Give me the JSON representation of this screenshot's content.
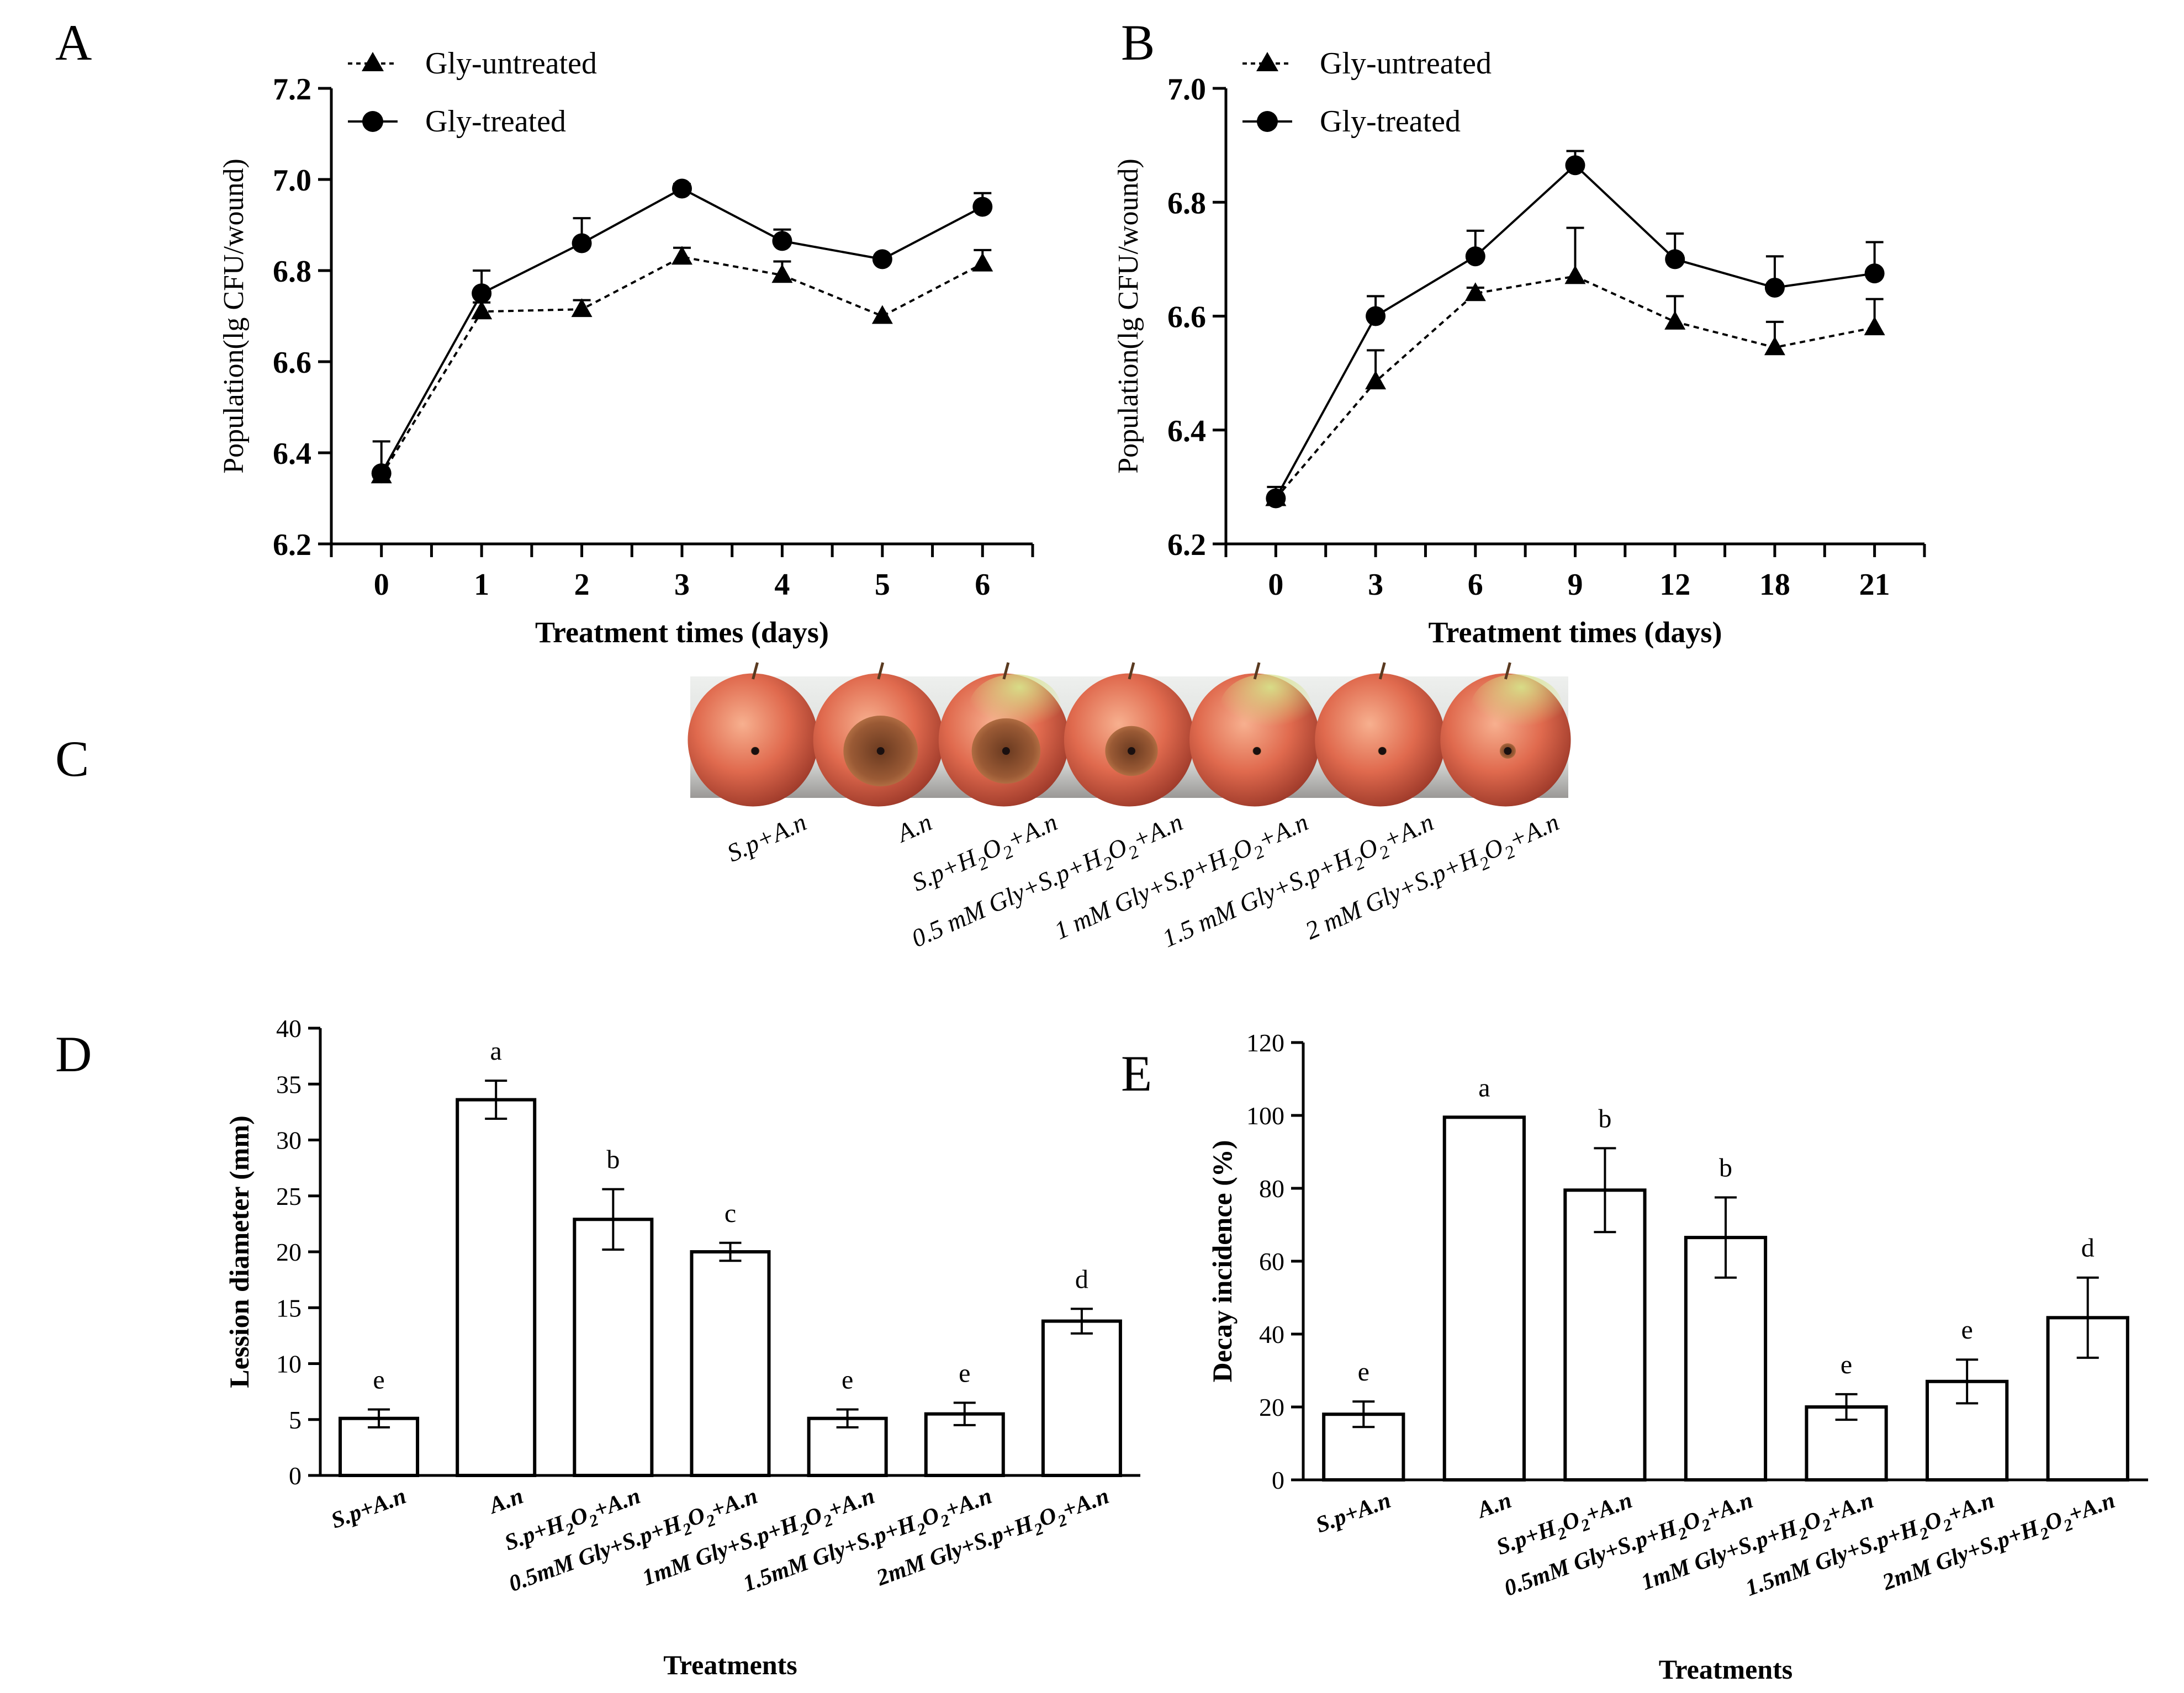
{
  "panel_labels": {
    "A": "A",
    "B": "B",
    "C": "C",
    "D": "D",
    "E": "E"
  },
  "colors": {
    "ink": "#000000",
    "apple_red": "#d9584a",
    "lesion_brown": "#8a4a2a",
    "background": "#ffffff"
  },
  "chart_data": [
    {
      "id": "A",
      "type": "line",
      "xlabel": "Treatment times (days)",
      "ylabel": "Population(lg CFU/wound)",
      "categories": [
        "0",
        "1",
        "2",
        "3",
        "4",
        "5",
        "6"
      ],
      "ylim": [
        6.2,
        7.2
      ],
      "yticks": [
        "6.2",
        "6.4",
        "6.6",
        "6.8",
        "7.0",
        "7.2"
      ],
      "legend_position": "top-left",
      "series": [
        {
          "name": "Gly-untreated",
          "marker": "triangle",
          "line": "dashed",
          "values": [
            6.35,
            6.71,
            6.715,
            6.83,
            6.79,
            6.7,
            6.815
          ],
          "errors": [
            0.0,
            0.02,
            0.02,
            0.02,
            0.03,
            0.0,
            0.03
          ]
        },
        {
          "name": "Gly-treated",
          "marker": "circle",
          "line": "solid",
          "values": [
            6.355,
            6.75,
            6.86,
            6.98,
            6.865,
            6.825,
            6.94
          ],
          "errors": [
            0.07,
            0.05,
            0.055,
            0.01,
            0.025,
            0.0,
            0.03
          ]
        }
      ]
    },
    {
      "id": "B",
      "type": "line",
      "xlabel": "Treatment times (days)",
      "ylabel": "Population(lg CFU/wound)",
      "categories": [
        "0",
        "3",
        "6",
        "9",
        "12",
        "18",
        "21"
      ],
      "ylim": [
        6.2,
        7.0
      ],
      "yticks": [
        "6.2",
        "6.4",
        "6.6",
        "6.8",
        "7.0"
      ],
      "legend_position": "top-left",
      "series": [
        {
          "name": "Gly-untreated",
          "marker": "triangle",
          "line": "dashed",
          "values": [
            6.28,
            6.485,
            6.64,
            6.67,
            6.59,
            6.545,
            6.58
          ],
          "errors": [
            0.0,
            0.055,
            0.01,
            0.085,
            0.045,
            0.045,
            0.05
          ]
        },
        {
          "name": "Gly-treated",
          "marker": "circle",
          "line": "solid",
          "values": [
            6.28,
            6.6,
            6.705,
            6.865,
            6.7,
            6.65,
            6.675
          ],
          "errors": [
            0.02,
            0.035,
            0.045,
            0.025,
            0.045,
            0.055,
            0.055
          ]
        }
      ]
    },
    {
      "id": "D",
      "type": "bar",
      "xlabel": "Treatments",
      "ylabel": "Lession diameter (mm)",
      "categories": [
        "S.p+A.n",
        "A.n",
        "S.p+H2O2+A.n",
        "0.5mM Gly+S.p+H2O2+A.n",
        "1mM Gly+S.p+H2O2+A.n",
        "1.5mM Gly+S.p+H2O2+A.n",
        "2mM Gly+S.p+H2O2+A.n"
      ],
      "values": [
        5.1,
        33.6,
        22.9,
        20.0,
        5.1,
        5.5,
        13.8
      ],
      "errors": [
        0.8,
        1.7,
        2.7,
        0.8,
        0.8,
        1.0,
        1.1
      ],
      "letters": [
        "e",
        "a",
        "b",
        "c",
        "e",
        "e",
        "d"
      ],
      "ylim": [
        0,
        40
      ],
      "yticks": [
        "0",
        "5",
        "10",
        "15",
        "20",
        "25",
        "30",
        "35",
        "40"
      ]
    },
    {
      "id": "E",
      "type": "bar",
      "xlabel": "Treatments",
      "ylabel": "Decay incidence (%)",
      "categories": [
        "S.p+A.n",
        "A.n",
        "S.p+H2O2+A.n",
        "0.5mM Gly+S.p+H2O2+A.n",
        "1mM Gly+S.p+H2O2+A.n",
        "1.5mM Gly+S.p+H2O2+A.n",
        "2mM Gly+S.p+H2O2+A.n"
      ],
      "values": [
        18,
        99.5,
        79.5,
        66.5,
        20,
        27,
        44.5
      ],
      "errors": [
        3.5,
        0,
        11.5,
        11,
        3.5,
        6,
        11
      ],
      "letters": [
        "e",
        "a",
        "b",
        "b",
        "e",
        "e",
        "d"
      ],
      "ylim": [
        0,
        120
      ],
      "yticks": [
        "0",
        "20",
        "40",
        "60",
        "80",
        "100",
        "120"
      ]
    }
  ],
  "photo_panel": {
    "id": "C",
    "labels": [
      "S.p+A.n",
      "A.n",
      "S.p+H2O2+A.n",
      "0.5 mM Gly+S.p+H2O2+A.n",
      "1 mM Gly+S.p+H2O2+A.n",
      "1.5 mM Gly+S.p+H2O2+A.n",
      "2 mM Gly+S.p+H2O2+A.n"
    ],
    "lesion_relative": [
      0.05,
      0.92,
      0.85,
      0.65,
      0.04,
      0.04,
      0.2
    ]
  }
}
